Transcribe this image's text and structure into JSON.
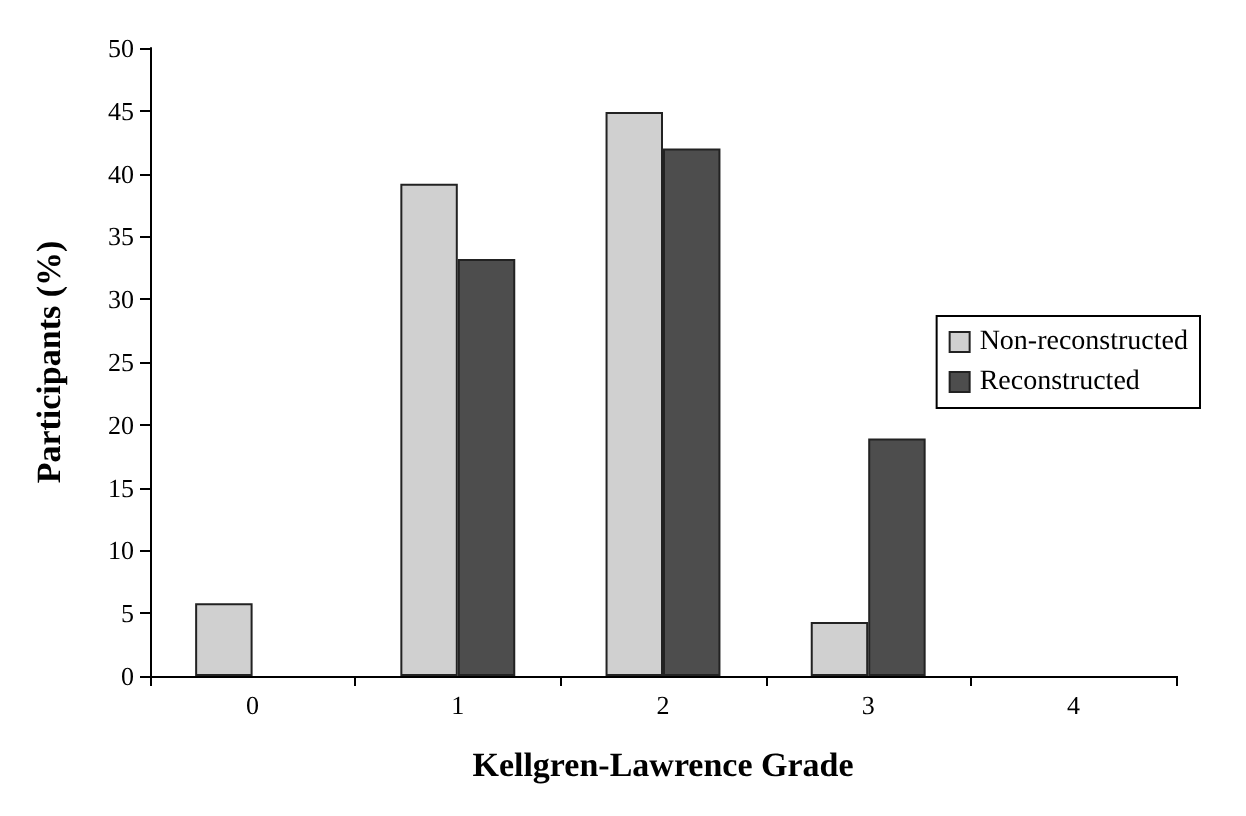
{
  "chart_data": {
    "type": "bar",
    "xlabel": "Kellgren-Lawrence Grade",
    "ylabel": "Participants (%)",
    "categories": [
      "0",
      "1",
      "2",
      "3",
      "4"
    ],
    "series": [
      {
        "name": "Non-reconstructed",
        "color": "#d0d0d0",
        "values": [
          5.8,
          39.2,
          44.9,
          4.3,
          0
        ]
      },
      {
        "name": "Reconstructed",
        "color": "#4d4d4d",
        "values": [
          0,
          33.2,
          42.0,
          18.9,
          0
        ]
      }
    ],
    "ylim": [
      0,
      50
    ],
    "yticks": [
      0,
      5,
      10,
      15,
      20,
      25,
      30,
      35,
      40,
      45,
      50
    ],
    "grid": false,
    "legend": "right"
  }
}
